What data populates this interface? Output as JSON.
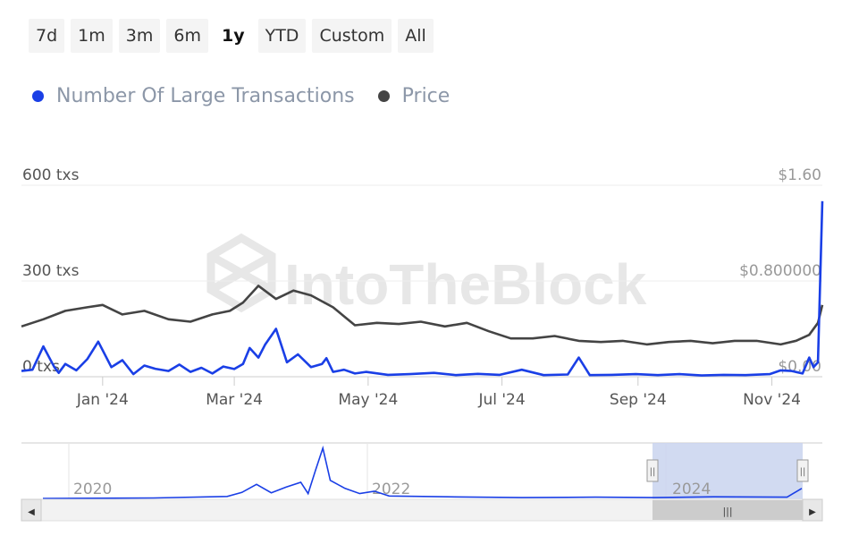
{
  "range_buttons": [
    {
      "label": "7d",
      "active": false
    },
    {
      "label": "1m",
      "active": false
    },
    {
      "label": "3m",
      "active": false
    },
    {
      "label": "6m",
      "active": false
    },
    {
      "label": "1y",
      "active": true
    },
    {
      "label": "YTD",
      "active": false
    },
    {
      "label": "Custom",
      "active": false
    },
    {
      "label": "All",
      "active": false
    }
  ],
  "legend": [
    {
      "name": "Number Of Large Transactions",
      "color": "#1a3fe6"
    },
    {
      "name": "Price",
      "color": "#444444"
    }
  ],
  "watermark": "IntoTheBlock",
  "chart_data": {
    "type": "line",
    "x_range": [
      "2023-11-25",
      "2024-11-24"
    ],
    "x_ticks": [
      "Jan '24",
      "Mar '24",
      "May '24",
      "Jul '24",
      "Sep '24",
      "Nov '24"
    ],
    "y_left": {
      "ticks": [
        "0 txs",
        "300 txs",
        "600 txs"
      ],
      "range": [
        0,
        600
      ]
    },
    "y_right": {
      "ticks": [
        "$0.00",
        "$0.800000",
        "$1.60"
      ],
      "range": [
        0,
        1.6
      ]
    },
    "grid": true,
    "legend_position": "top-left",
    "series": [
      {
        "name": "Number Of Large Transactions",
        "axis": "left",
        "color": "#1a3fe6",
        "x": [
          "2023-11-25",
          "2023-11-30",
          "2023-12-05",
          "2023-12-10",
          "2023-12-12",
          "2023-12-15",
          "2023-12-20",
          "2023-12-25",
          "2023-12-30",
          "2024-01-05",
          "2024-01-10",
          "2024-01-15",
          "2024-01-20",
          "2024-01-25",
          "2024-01-31",
          "2024-02-05",
          "2024-02-10",
          "2024-02-15",
          "2024-02-20",
          "2024-02-25",
          "2024-03-01",
          "2024-03-05",
          "2024-03-08",
          "2024-03-12",
          "2024-03-15",
          "2024-03-20",
          "2024-03-25",
          "2024-03-30",
          "2024-04-05",
          "2024-04-10",
          "2024-04-12",
          "2024-04-15",
          "2024-04-20",
          "2024-04-25",
          "2024-04-30",
          "2024-05-10",
          "2024-05-20",
          "2024-05-31",
          "2024-06-10",
          "2024-06-20",
          "2024-06-30",
          "2024-07-10",
          "2024-07-20",
          "2024-07-31",
          "2024-08-05",
          "2024-08-10",
          "2024-08-20",
          "2024-08-31",
          "2024-09-10",
          "2024-09-20",
          "2024-09-30",
          "2024-10-10",
          "2024-10-20",
          "2024-10-31",
          "2024-11-05",
          "2024-11-10",
          "2024-11-15",
          "2024-11-18",
          "2024-11-20",
          "2024-11-22",
          "2024-11-24"
        ],
        "values": [
          18,
          22,
          95,
          30,
          12,
          40,
          20,
          55,
          110,
          30,
          52,
          8,
          35,
          25,
          18,
          38,
          15,
          28,
          10,
          32,
          24,
          40,
          90,
          60,
          100,
          150,
          45,
          70,
          30,
          40,
          58,
          15,
          22,
          10,
          15,
          6,
          8,
          12,
          5,
          9,
          6,
          22,
          5,
          7,
          60,
          5,
          6,
          8,
          5,
          8,
          4,
          6,
          5,
          8,
          20,
          18,
          10,
          60,
          30,
          45,
          550
        ]
      },
      {
        "name": "Price",
        "axis": "right",
        "color": "#444444",
        "x": [
          "2023-11-25",
          "2023-12-05",
          "2023-12-15",
          "2023-12-25",
          "2024-01-01",
          "2024-01-10",
          "2024-01-20",
          "2024-01-31",
          "2024-02-10",
          "2024-02-20",
          "2024-02-28",
          "2024-03-05",
          "2024-03-12",
          "2024-03-20",
          "2024-03-28",
          "2024-04-05",
          "2024-04-15",
          "2024-04-25",
          "2024-05-05",
          "2024-05-15",
          "2024-05-25",
          "2024-06-05",
          "2024-06-15",
          "2024-06-25",
          "2024-07-05",
          "2024-07-15",
          "2024-07-25",
          "2024-08-05",
          "2024-08-15",
          "2024-08-25",
          "2024-09-05",
          "2024-09-15",
          "2024-09-25",
          "2024-10-05",
          "2024-10-15",
          "2024-10-25",
          "2024-11-05",
          "2024-11-12",
          "2024-11-18",
          "2024-11-22",
          "2024-11-24"
        ],
        "values": [
          0.42,
          0.48,
          0.55,
          0.58,
          0.6,
          0.52,
          0.55,
          0.48,
          0.46,
          0.52,
          0.55,
          0.62,
          0.76,
          0.65,
          0.72,
          0.68,
          0.58,
          0.43,
          0.45,
          0.44,
          0.46,
          0.42,
          0.45,
          0.38,
          0.32,
          0.32,
          0.34,
          0.3,
          0.29,
          0.3,
          0.27,
          0.29,
          0.3,
          0.28,
          0.3,
          0.3,
          0.27,
          0.3,
          0.35,
          0.45,
          0.6
        ]
      }
    ]
  },
  "navigator": {
    "year_labels": [
      "2020",
      "2022",
      "2024"
    ],
    "handle_glyph": "||",
    "thumb_glyph": "|||",
    "scroll_left_arrow": "◀",
    "scroll_right_arrow": "▶",
    "series_points": [
      [
        2019.75,
        0
      ],
      [
        2020.5,
        1
      ],
      [
        2021.0,
        5
      ],
      [
        2021.1,
        15
      ],
      [
        2021.2,
        35
      ],
      [
        2021.3,
        14
      ],
      [
        2021.4,
        28
      ],
      [
        2021.5,
        40
      ],
      [
        2021.55,
        12
      ],
      [
        2021.6,
        70
      ],
      [
        2021.65,
        125
      ],
      [
        2021.7,
        45
      ],
      [
        2021.8,
        25
      ],
      [
        2021.9,
        12
      ],
      [
        2022.0,
        18
      ],
      [
        2022.1,
        6
      ],
      [
        2022.5,
        4
      ],
      [
        2023.0,
        2
      ],
      [
        2023.5,
        3
      ],
      [
        2023.9,
        2
      ],
      [
        2024.3,
        4
      ],
      [
        2024.8,
        3
      ],
      [
        2024.9,
        25
      ]
    ]
  }
}
